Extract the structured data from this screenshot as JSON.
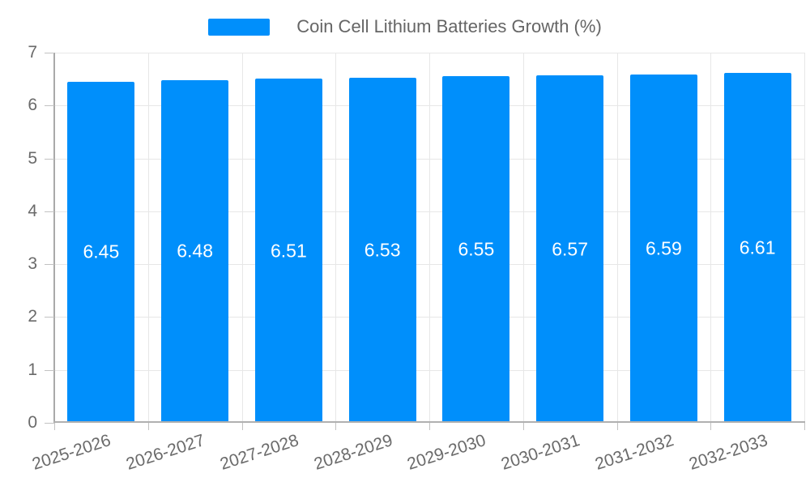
{
  "chart_data": {
    "type": "bar",
    "title": "Coin Cell Lithium Batteries Growth (%)",
    "series_name": "Coin Cell Lithium Batteries Growth (%)",
    "categories": [
      "2025-2026",
      "2026-2027",
      "2027-2028",
      "2028-2029",
      "2029-2030",
      "2030-2031",
      "2031-2032",
      "2032-2033"
    ],
    "values": [
      6.45,
      6.48,
      6.51,
      6.53,
      6.55,
      6.57,
      6.59,
      6.61
    ],
    "value_labels": [
      "6.45",
      "6.48",
      "6.51",
      "6.53",
      "6.55",
      "6.57",
      "6.59",
      "6.61"
    ],
    "xlabel": "",
    "ylabel": "",
    "ylim": [
      0,
      7
    ],
    "yticks": [
      0,
      1,
      2,
      3,
      4,
      5,
      6,
      7
    ],
    "grid": true,
    "legend_position": "top",
    "colors": {
      "bar": "#008ffb",
      "value_label": "#ffffff",
      "grid": "#e7e7e7",
      "axis_text": "#6a6a6a",
      "legend_text": "#656565"
    }
  }
}
